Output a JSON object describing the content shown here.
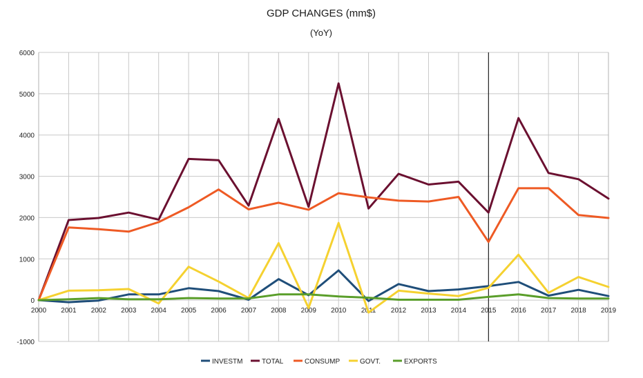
{
  "chart_data": {
    "type": "line",
    "title": "GDP CHANGES (mm$)",
    "subtitle": "(YoY)",
    "xlabel": "",
    "ylabel": "",
    "x": [
      "2000",
      "2001",
      "2002",
      "2003",
      "2004",
      "2005",
      "2006",
      "2007",
      "2008",
      "2009",
      "2010",
      "2011",
      "2012",
      "2013",
      "2014",
      "2015",
      "2016",
      "2017",
      "2018",
      "2019"
    ],
    "ylim": [
      -1000,
      6000
    ],
    "yticks": [
      "-1000",
      "0",
      "1000",
      "2000",
      "3000",
      "4000",
      "5000",
      "6000"
    ],
    "grid": true,
    "legend": "bottom",
    "marker_line_year": "2015",
    "series": [
      {
        "name": "INVESTM",
        "color": "#1f4e79",
        "values": [
          0,
          -50,
          -10,
          140,
          140,
          290,
          220,
          10,
          510,
          120,
          720,
          -20,
          390,
          220,
          260,
          340,
          440,
          110,
          250,
          100
        ]
      },
      {
        "name": "TOTAL",
        "color": "#6b1030",
        "values": [
          0,
          1940,
          1990,
          2120,
          1950,
          3420,
          3390,
          2290,
          4390,
          2260,
          5250,
          2220,
          3060,
          2800,
          2870,
          2120,
          4410,
          3080,
          2930,
          2460
        ]
      },
      {
        "name": "CONSUMP",
        "color": "#ee5a24",
        "values": [
          0,
          1760,
          1720,
          1660,
          1890,
          2250,
          2680,
          2200,
          2360,
          2190,
          2590,
          2490,
          2410,
          2390,
          2500,
          1410,
          2710,
          2710,
          2060,
          1990
        ]
      },
      {
        "name": "GOVT.",
        "color": "#f5d130",
        "values": [
          0,
          230,
          240,
          270,
          -80,
          810,
          450,
          50,
          1380,
          -190,
          1870,
          -300,
          230,
          160,
          100,
          300,
          1100,
          180,
          560,
          320
        ]
      },
      {
        "name": "EXPORTS",
        "color": "#5a9e2a",
        "values": [
          0,
          20,
          50,
          20,
          20,
          50,
          40,
          40,
          140,
          140,
          90,
          60,
          10,
          10,
          10,
          80,
          140,
          50,
          40,
          40
        ]
      }
    ]
  }
}
